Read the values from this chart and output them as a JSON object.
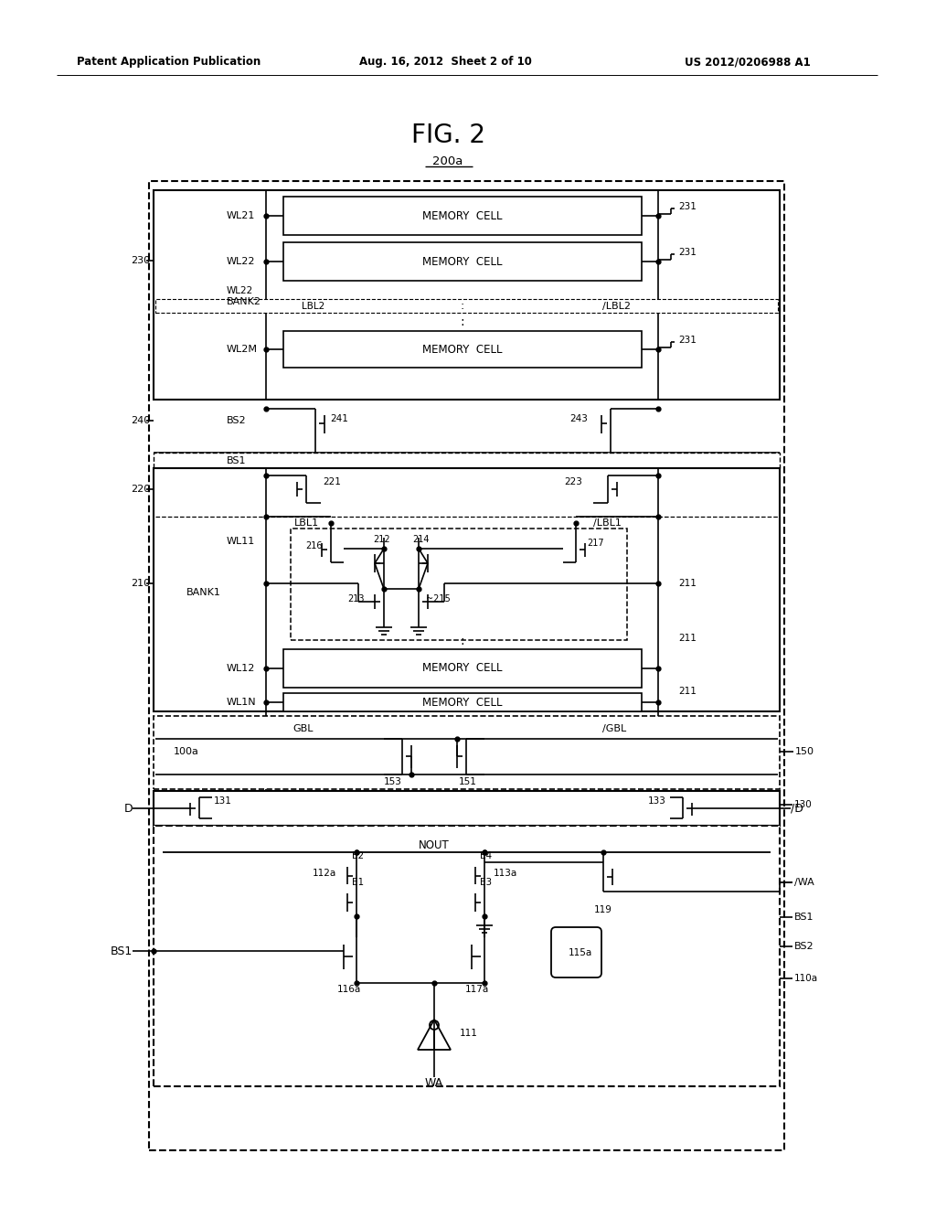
{
  "patent_header_left": "Patent Application Publication",
  "patent_header_mid": "Aug. 16, 2012  Sheet 2 of 10",
  "patent_header_right": "US 2012/0206988 A1",
  "fig_title": "FIG. 2",
  "block_label": "200a",
  "bg": "#ffffff",
  "lc": "#000000"
}
